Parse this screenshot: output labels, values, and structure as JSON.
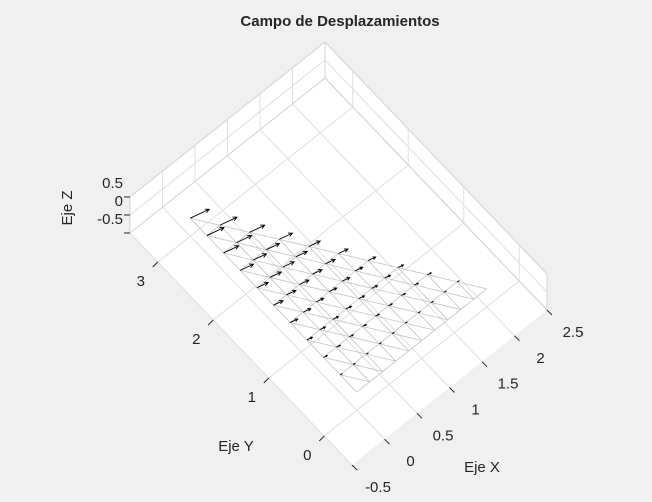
{
  "chart_data": {
    "type": "quiver3",
    "title": "Campo de Desplazamientos",
    "xlabel": "Eje X",
    "ylabel": "Eje Y",
    "zlabel": "Eje Z",
    "xlim": [
      -0.5,
      2.5
    ],
    "ylim": [
      -0.5,
      3.5
    ],
    "zlim": [
      -0.5,
      0.5
    ],
    "xticks": [
      -0.5,
      0,
      0.5,
      1,
      1.5,
      2,
      2.5
    ],
    "yticks": [
      0,
      1,
      2,
      3
    ],
    "zticks": [
      -0.5,
      0,
      0.5
    ],
    "grid": true,
    "color": "#000000",
    "x": [
      0,
      0.2,
      0.4,
      0.6,
      0.8,
      1,
      1.2,
      1.4,
      1.6,
      1.8,
      2,
      0,
      0.2,
      0.4,
      0.6,
      0.8,
      1,
      1.2,
      1.4,
      1.6,
      1.8,
      0,
      0.2,
      0.4,
      0.6,
      0.8,
      1,
      1.2,
      1.4,
      1.6,
      0,
      0.2,
      0.4,
      0.6,
      0.8,
      1,
      1.2,
      1.4,
      0,
      0.2,
      0.4,
      0.6,
      0.8,
      1,
      1.2,
      0,
      0.2,
      0.4,
      0.6,
      0.8,
      1,
      0,
      0.2,
      0.4,
      0.6,
      0.8,
      0,
      0.2,
      0.4,
      0.6,
      0,
      0.2,
      0.4,
      0,
      0.2,
      0
    ],
    "y": [
      0,
      0,
      0,
      0,
      0,
      0,
      0,
      0,
      0,
      0,
      0,
      0.3,
      0.3,
      0.3,
      0.3,
      0.3,
      0.3,
      0.3,
      0.3,
      0.3,
      0.3,
      0.6,
      0.6,
      0.6,
      0.6,
      0.6,
      0.6,
      0.6,
      0.6,
      0.6,
      0.9,
      0.9,
      0.9,
      0.9,
      0.9,
      0.9,
      0.9,
      0.9,
      1.2,
      1.2,
      1.2,
      1.2,
      1.2,
      1.2,
      1.2,
      1.5,
      1.5,
      1.5,
      1.5,
      1.5,
      1.5,
      1.8,
      1.8,
      1.8,
      1.8,
      1.8,
      2.1,
      2.1,
      2.1,
      2.1,
      2.4,
      2.4,
      2.4,
      2.7,
      2.7,
      3
    ],
    "u": [
      0,
      0,
      0,
      0,
      0,
      0,
      0,
      0,
      0,
      0,
      0,
      0.024,
      0.024,
      0.024,
      0.024,
      0.024,
      0.024,
      0.024,
      0.024,
      0.024,
      0.024,
      0.048,
      0.048,
      0.048,
      0.048,
      0.048,
      0.048,
      0.048,
      0.048,
      0.048,
      0.072,
      0.072,
      0.072,
      0.072,
      0.072,
      0.072,
      0.072,
      0.072,
      0.096,
      0.096,
      0.096,
      0.096,
      0.096,
      0.096,
      0.096,
      0.12,
      0.12,
      0.12,
      0.12,
      0.12,
      0.12,
      0.144,
      0.144,
      0.144,
      0.144,
      0.144,
      0.168,
      0.168,
      0.168,
      0.168,
      0.192,
      0.192,
      0.192,
      0.216,
      0.216,
      0.24
    ],
    "v": [
      0,
      0,
      0,
      0,
      0,
      0,
      0,
      0,
      0,
      0,
      0,
      -0.006,
      -0.006,
      -0.006,
      -0.006,
      -0.006,
      -0.006,
      -0.006,
      -0.006,
      -0.006,
      -0.006,
      -0.012,
      -0.012,
      -0.012,
      -0.012,
      -0.012,
      -0.012,
      -0.012,
      -0.012,
      -0.012,
      -0.018,
      -0.018,
      -0.018,
      -0.018,
      -0.018,
      -0.018,
      -0.018,
      -0.018,
      -0.024,
      -0.024,
      -0.024,
      -0.024,
      -0.024,
      -0.024,
      -0.024,
      -0.03,
      -0.03,
      -0.03,
      -0.03,
      -0.03,
      -0.03,
      -0.036,
      -0.036,
      -0.036,
      -0.036,
      -0.036,
      -0.042,
      -0.042,
      -0.042,
      -0.042,
      -0.048,
      -0.048,
      -0.048,
      -0.054,
      -0.054,
      -0.06
    ]
  }
}
